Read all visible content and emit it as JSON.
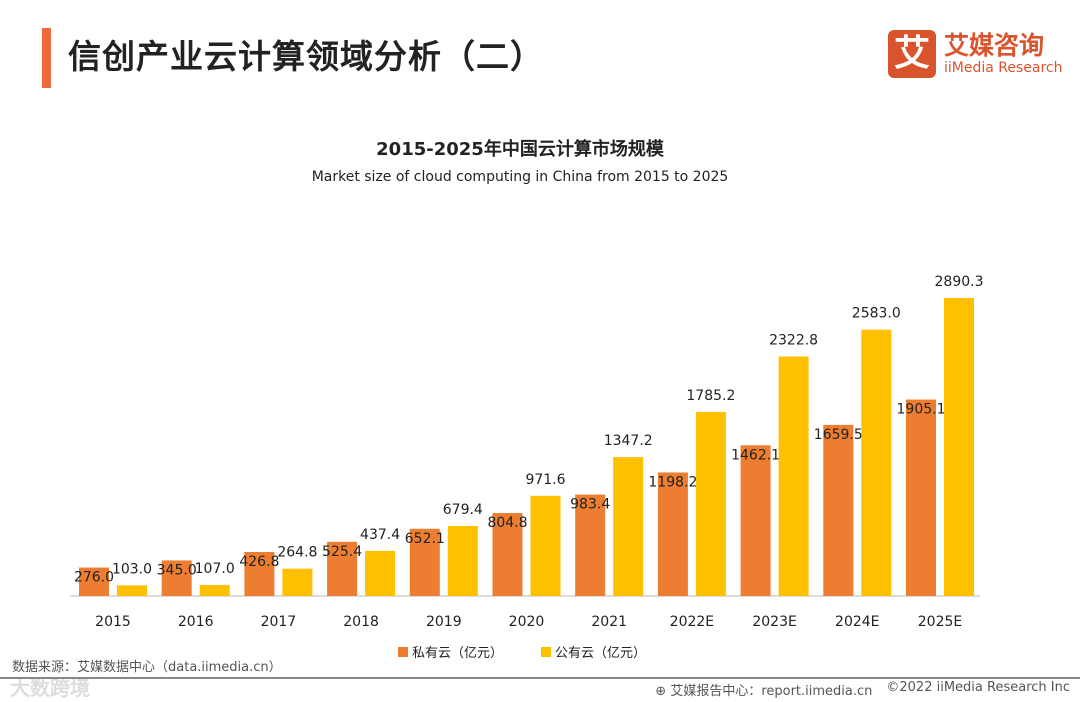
{
  "header": {
    "title": "信创产业云计算领域分析（二）",
    "logo_mark": "艾",
    "logo_cn": "艾媒咨询",
    "logo_en": "iiMedia Research"
  },
  "chart_data": {
    "type": "bar",
    "title": "2015-2025年中国云计算市场规模",
    "subtitle": "Market size of cloud computing in China from 2015 to 2025",
    "categories": [
      "2015",
      "2016",
      "2017",
      "2018",
      "2019",
      "2020",
      "2021",
      "2022E",
      "2023E",
      "2024E",
      "2025E"
    ],
    "series": [
      {
        "name": "私有云（亿元）",
        "color": "#ED7D31",
        "values": [
          276.0,
          345.0,
          426.8,
          525.4,
          652.1,
          804.8,
          983.4,
          1198.2,
          1462.1,
          1659.5,
          1905.1
        ]
      },
      {
        "name": "公有云（亿元）",
        "color": "#FFC000",
        "values": [
          103.0,
          107.0,
          264.8,
          437.4,
          679.4,
          971.6,
          1347.2,
          1785.2,
          2322.8,
          2583.0,
          2890.3
        ]
      }
    ],
    "ylim": [
      0,
      2890.3
    ],
    "grid": false,
    "legend": "bottom"
  },
  "footer": {
    "source": "数据来源：艾媒数据中心（data.iimedia.cn）",
    "report": "艾媒报告中心：report.iimedia.cn",
    "copyright": "©2022  iiMedia Research  Inc",
    "watermark": "大数跨境"
  }
}
